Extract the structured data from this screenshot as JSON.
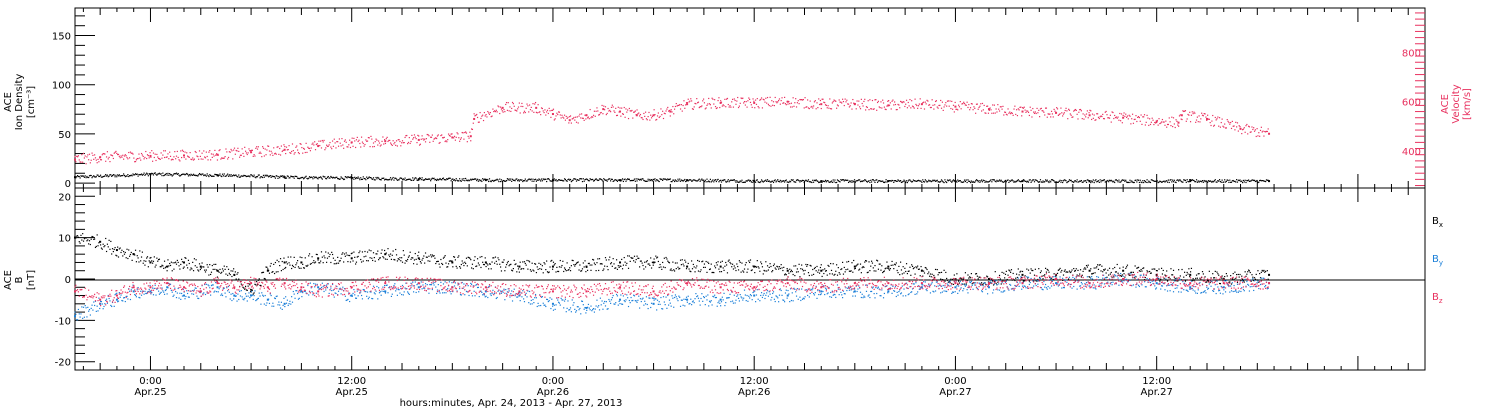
{
  "colors": {
    "black": "#000000",
    "velocity": "#e8315f",
    "by": "#1a7fd8",
    "bz": "#e8315f"
  },
  "xlabel": "hours:minutes, Apr. 24, 2013 - Apr. 27, 2013",
  "x_ticks": [
    {
      "t": 24,
      "time": "0:00",
      "date": "Apr.25"
    },
    {
      "t": 36,
      "time": "12:00",
      "date": "Apr.25"
    },
    {
      "t": 48,
      "time": "0:00",
      "date": "Apr.26"
    },
    {
      "t": 60,
      "time": "12:00",
      "date": "Apr.26"
    },
    {
      "t": 72,
      "time": "0:00",
      "date": "Apr.27"
    },
    {
      "t": 84,
      "time": "12:00",
      "date": "Apr.27"
    }
  ],
  "chart_data": [
    {
      "type": "scatter",
      "panel": "top",
      "ylabel_lines": [
        "ACE",
        "Ion Density"
      ],
      "ylabel_units": "[cm⁻³]",
      "ylim": [
        -5,
        178
      ],
      "y_ticks": [
        "0",
        "50",
        "100",
        "150"
      ],
      "y_tick_values": [
        0,
        50,
        100,
        150
      ],
      "x_range_hours_from_apr24_0000": [
        19.5,
        100
      ],
      "right_axis": {
        "ylabel_lines": [
          "ACE",
          "Velocity"
        ],
        "ylabel_units": "[km/s]",
        "ylim": [
          250,
          980
        ],
        "y_ticks": [
          "400",
          "600",
          "800"
        ],
        "y_tick_values": [
          400,
          600,
          800
        ]
      },
      "series": [
        {
          "axis": "left",
          "x_hours": [
            19.5,
            24,
            28,
            32,
            36,
            40,
            44,
            48,
            52,
            56,
            60,
            64,
            68,
            72,
            76,
            80,
            86,
            90.7
          ],
          "values": [
            6,
            9,
            8,
            6,
            5,
            4,
            3,
            3,
            3,
            3,
            2,
            2,
            2,
            2,
            2,
            2,
            2,
            2
          ]
        },
        {
          "axis": "right",
          "x_hours": [
            19.5,
            21,
            24,
            26,
            28,
            30,
            32,
            34,
            36,
            38,
            40,
            42,
            43.1,
            43.3,
            45,
            47,
            48,
            49,
            50,
            51,
            52,
            53,
            54,
            55,
            56,
            58,
            60,
            62,
            64,
            66,
            68,
            70,
            72,
            74,
            76,
            78,
            80,
            82,
            84,
            85.3,
            85.5,
            87,
            89,
            90.7
          ],
          "values": [
            365,
            375,
            380,
            382,
            385,
            395,
            405,
            420,
            435,
            440,
            445,
            455,
            460,
            530,
            575,
            575,
            550,
            525,
            545,
            570,
            560,
            545,
            545,
            560,
            590,
            595,
            595,
            600,
            590,
            590,
            585,
            590,
            580,
            570,
            560,
            555,
            545,
            535,
            520,
            515,
            545,
            530,
            490,
            470
          ]
        }
      ]
    },
    {
      "type": "scatter",
      "panel": "bottom",
      "ylabel_lines": [
        "ACE",
        "B"
      ],
      "ylabel_units": "[nT]",
      "ylim": [
        -22,
        22
      ],
      "y_ticks": [
        "-20",
        "-10",
        "0",
        "10",
        "20"
      ],
      "y_tick_values": [
        -20,
        -10,
        0,
        10,
        20
      ],
      "x_range_hours_from_apr24_0000": [
        19.5,
        100
      ],
      "series": [
        {
          "name": "Bx",
          "x_hours": [
            19.5,
            21,
            22,
            23,
            24,
            25,
            26,
            27,
            28,
            29,
            30,
            31,
            32,
            33,
            34,
            36,
            38,
            40,
            42,
            44,
            46,
            48,
            50,
            52,
            54,
            56,
            58,
            60,
            62,
            64,
            66,
            68,
            70,
            72,
            74,
            76,
            78,
            80,
            82,
            84,
            86,
            88,
            90.7
          ],
          "values": [
            10,
            9,
            7,
            6,
            4,
            3,
            4,
            3,
            2,
            1,
            -3,
            2,
            4,
            4,
            5,
            5,
            6,
            5,
            4,
            4,
            3,
            3,
            3,
            4,
            4,
            3,
            3,
            3,
            2,
            2,
            3,
            3,
            2,
            0,
            0,
            1,
            1,
            2,
            2,
            1,
            1,
            0,
            1
          ]
        },
        {
          "name": "By",
          "x_hours": [
            19.5,
            21,
            22,
            23,
            24,
            25,
            26,
            27,
            28,
            29,
            30,
            31,
            32,
            33,
            34,
            36,
            38,
            40,
            42,
            44,
            46,
            48,
            50,
            52,
            54,
            56,
            58,
            60,
            62,
            64,
            66,
            68,
            70,
            72,
            74,
            76,
            78,
            80,
            82,
            84,
            86,
            88,
            90.7
          ],
          "values": [
            -9,
            -6,
            -5,
            -3,
            -3,
            -2,
            -4,
            -3,
            -2,
            -4,
            -4,
            -5,
            -6,
            -3,
            -2,
            -4,
            -3,
            -2,
            -2,
            -3,
            -4,
            -6,
            -7,
            -5,
            -6,
            -5,
            -5,
            -4,
            -4,
            -3,
            -3,
            -3,
            -2,
            -2,
            -2,
            -1,
            -1,
            -1,
            0,
            -1,
            -2,
            -2,
            -1
          ]
        },
        {
          "name": "Bz",
          "x_hours": [
            19.5,
            21,
            22,
            23,
            24,
            25,
            26,
            27,
            28,
            29,
            30,
            31,
            32,
            33,
            34,
            36,
            38,
            40,
            42,
            44,
            46,
            48,
            50,
            52,
            54,
            56,
            58,
            60,
            62,
            64,
            66,
            68,
            70,
            72,
            74,
            76,
            78,
            80,
            82,
            84,
            86,
            88,
            90.7
          ],
          "values": [
            -3,
            -5,
            -4,
            -2,
            -2,
            -1,
            -2,
            -3,
            -1,
            -2,
            -1,
            -2,
            -1,
            -2,
            -3,
            -2,
            -1,
            -1,
            -2,
            -2,
            -3,
            -3,
            -3,
            -2,
            -3,
            -1,
            -2,
            -2,
            -1,
            -2,
            -1,
            -1,
            -1,
            -1,
            -1,
            -1,
            0,
            -1,
            0,
            0,
            -1,
            -1,
            -1
          ]
        }
      ]
    }
  ],
  "legend": [
    {
      "label": "B",
      "sub": "x",
      "color_key": "black"
    },
    {
      "label": "B",
      "sub": "y",
      "color_key": "by"
    },
    {
      "label": "B",
      "sub": "z",
      "color_key": "bz"
    }
  ]
}
